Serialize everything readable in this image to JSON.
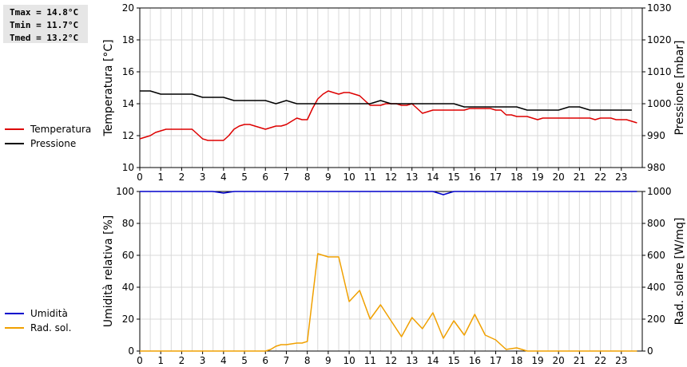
{
  "stats": {
    "tmax": "Tmax = 14.8°C",
    "tmin": "Tmin = 11.7°C",
    "tmed": "Tmed = 13.2°C"
  },
  "legend_top": [
    {
      "label": "Temperatura",
      "color": "#dd0000"
    },
    {
      "label": "Pressione",
      "color": "#000000"
    }
  ],
  "legend_bottom": [
    {
      "label": "Umidità",
      "color": "#0000cc"
    },
    {
      "label": "Rad. sol.",
      "color": "#f0a000"
    }
  ],
  "chart_data": [
    {
      "type": "line",
      "ylabel": "Temperatura [°C]",
      "y2label": "Pressione [mbar]",
      "xlim": [
        0,
        24
      ],
      "ylim": [
        10,
        20
      ],
      "y2lim": [
        980,
        1030
      ],
      "x_ticks": [
        "0",
        "1",
        "2",
        "3",
        "4",
        "5",
        "6",
        "7",
        "8",
        "9",
        "10",
        "11",
        "12",
        "13",
        "14",
        "15",
        "16",
        "17",
        "18",
        "19",
        "20",
        "21",
        "22",
        "23"
      ],
      "y_ticks": [
        "10",
        "12",
        "14",
        "16",
        "18",
        "20"
      ],
      "y2_ticks": [
        "980",
        "990",
        "1000",
        "1010",
        "1020",
        "1030"
      ],
      "grid": true,
      "series": [
        {
          "name": "Temperatura",
          "axis": "left",
          "color": "#dd0000",
          "x": [
            0,
            0.25,
            0.5,
            0.75,
            1,
            1.25,
            1.5,
            1.75,
            2,
            2.25,
            2.5,
            2.75,
            3,
            3.25,
            3.5,
            3.75,
            4,
            4.25,
            4.5,
            4.75,
            5,
            5.25,
            5.5,
            5.75,
            6,
            6.25,
            6.5,
            6.75,
            7,
            7.25,
            7.5,
            7.75,
            8,
            8.25,
            8.5,
            8.75,
            9,
            9.25,
            9.5,
            9.75,
            10,
            10.25,
            10.5,
            10.75,
            11,
            11.25,
            11.5,
            11.75,
            12,
            12.25,
            12.5,
            12.75,
            13,
            13.25,
            13.5,
            13.75,
            14,
            14.25,
            14.5,
            14.75,
            15,
            15.25,
            15.5,
            15.75,
            16,
            16.25,
            16.5,
            16.75,
            17,
            17.25,
            17.5,
            17.75,
            18,
            18.25,
            18.5,
            18.75,
            19,
            19.25,
            19.5,
            19.75,
            20,
            20.25,
            20.5,
            20.75,
            21,
            21.25,
            21.5,
            21.75,
            22,
            22.25,
            22.5,
            22.75,
            23,
            23.25,
            23.5,
            23.75
          ],
          "values": [
            11.8,
            11.9,
            12.0,
            12.2,
            12.3,
            12.4,
            12.4,
            12.4,
            12.4,
            12.4,
            12.4,
            12.1,
            11.8,
            11.7,
            11.7,
            11.7,
            11.7,
            12.0,
            12.4,
            12.6,
            12.7,
            12.7,
            12.6,
            12.5,
            12.4,
            12.5,
            12.6,
            12.6,
            12.7,
            12.9,
            13.1,
            13.0,
            13.0,
            13.7,
            14.3,
            14.6,
            14.8,
            14.7,
            14.6,
            14.7,
            14.7,
            14.6,
            14.5,
            14.2,
            13.9,
            13.9,
            13.9,
            14.0,
            14.0,
            14.0,
            13.9,
            13.9,
            14.0,
            13.7,
            13.4,
            13.5,
            13.6,
            13.6,
            13.6,
            13.6,
            13.6,
            13.6,
            13.6,
            13.7,
            13.7,
            13.7,
            13.7,
            13.7,
            13.6,
            13.6,
            13.3,
            13.3,
            13.2,
            13.2,
            13.2,
            13.1,
            13.0,
            13.1,
            13.1,
            13.1,
            13.1,
            13.1,
            13.1,
            13.1,
            13.1,
            13.1,
            13.1,
            13.0,
            13.1,
            13.1,
            13.1,
            13.0,
            13.0,
            13.0,
            12.9,
            12.8
          ]
        },
        {
          "name": "Pressione",
          "axis": "right",
          "color": "#000000",
          "x": [
            0,
            0.5,
            1,
            1.5,
            2,
            2.5,
            3,
            3.5,
            4,
            4.5,
            5,
            5.5,
            6,
            6.5,
            7,
            7.5,
            8,
            8.5,
            9,
            9.5,
            10,
            10.5,
            11,
            11.5,
            12,
            12.5,
            13,
            13.5,
            14,
            14.5,
            15,
            15.5,
            16,
            16.5,
            17,
            17.5,
            18,
            18.5,
            19,
            19.5,
            20,
            20.5,
            21,
            21.5,
            22,
            22.5,
            23,
            23.5
          ],
          "values": [
            1004,
            1004,
            1003,
            1003,
            1003,
            1003,
            1002,
            1002,
            1002,
            1001,
            1001,
            1001,
            1001,
            1000,
            1001,
            1000,
            1000,
            1000,
            1000,
            1000,
            1000,
            1000,
            1000,
            1001,
            1000,
            1000,
            1000,
            1000,
            1000,
            1000,
            1000,
            999,
            999,
            999,
            999,
            999,
            999,
            998,
            998,
            998,
            998,
            999,
            999,
            998,
            998,
            998,
            998,
            998
          ]
        }
      ]
    },
    {
      "type": "line",
      "ylabel": "Umidità relativa [%]",
      "y2label": "Rad. solare [W/mq]",
      "xlim": [
        0,
        24
      ],
      "ylim": [
        0,
        100
      ],
      "y2lim": [
        0,
        1000
      ],
      "x_ticks": [
        "0",
        "1",
        "2",
        "3",
        "4",
        "5",
        "6",
        "7",
        "8",
        "9",
        "10",
        "11",
        "12",
        "13",
        "14",
        "15",
        "16",
        "17",
        "18",
        "19",
        "20",
        "21",
        "22",
        "23"
      ],
      "y_ticks": [
        "0",
        "20",
        "40",
        "60",
        "80",
        "100"
      ],
      "y2_ticks": [
        "0",
        "200",
        "400",
        "600",
        "800",
        "1000"
      ],
      "grid": true,
      "series": [
        {
          "name": "Umidità",
          "axis": "left",
          "color": "#0000cc",
          "x": [
            0,
            3.5,
            3.75,
            4,
            4.25,
            4.5,
            14,
            14.25,
            14.5,
            14.75,
            15,
            23.75
          ],
          "values": [
            100,
            100,
            99.5,
            99,
            99.5,
            100,
            100,
            99,
            98,
            99,
            100,
            100
          ]
        },
        {
          "name": "Rad. sol.",
          "axis": "right",
          "color": "#f0a000",
          "x": [
            0,
            6,
            6.25,
            6.5,
            6.75,
            7,
            7.5,
            7.75,
            8,
            8.5,
            9,
            9.5,
            10,
            10.5,
            11,
            11.5,
            12,
            12.5,
            13,
            13.5,
            14,
            14.5,
            15,
            15.5,
            16,
            16.5,
            17,
            17.5,
            18,
            18.5,
            19,
            23.75
          ],
          "values": [
            0,
            0,
            10,
            30,
            40,
            40,
            50,
            50,
            60,
            610,
            590,
            590,
            310,
            380,
            200,
            290,
            190,
            90,
            210,
            140,
            240,
            80,
            190,
            100,
            230,
            100,
            70,
            10,
            20,
            0,
            0,
            0
          ]
        }
      ]
    }
  ]
}
